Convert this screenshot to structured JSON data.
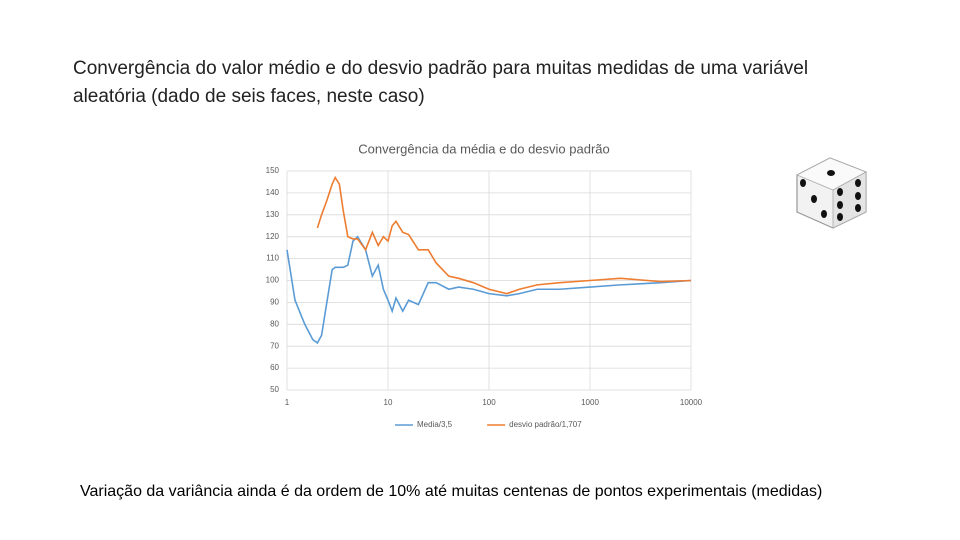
{
  "slide": {
    "title": "Convergência do valor médio e do desvio padrão para muitas medidas de uma variável aleatória (dado de seis faces, neste caso)",
    "caption": "Variação da variância ainda é da ordem de 10% até muitas centenas de pontos experimentais (medidas)"
  },
  "chart_data": {
    "type": "line",
    "title": "Convergência da média e do desvio padrão",
    "x": [
      1,
      1.2,
      1.5,
      1.8,
      2,
      2.2,
      2.5,
      2.8,
      3,
      3.3,
      3.6,
      4,
      4.5,
      5,
      6,
      7,
      8,
      9,
      10,
      11,
      12,
      14,
      16,
      20,
      25,
      30,
      40,
      50,
      70,
      100,
      150,
      200,
      300,
      500,
      1000,
      2000,
      5000,
      10000
    ],
    "series": [
      {
        "name": "Media/3,5",
        "color": "#5b9bd5",
        "values": [
          114,
          91,
          80,
          73,
          71.5,
          75,
          91,
          105,
          106,
          106,
          106,
          107,
          118,
          120,
          114,
          102,
          107,
          96,
          91,
          86,
          92,
          86,
          91,
          89,
          99,
          99,
          96,
          97,
          96,
          94,
          93,
          94,
          96,
          96,
          97,
          98,
          99,
          100
        ]
      },
      {
        "name": "desvio padrão/1,707",
        "color": "#ed7d31",
        "values": [
          null,
          null,
          null,
          null,
          124,
          130,
          137,
          144,
          147,
          144,
          132,
          120,
          119,
          119,
          114,
          122,
          116,
          120,
          118,
          125,
          127,
          122,
          121,
          114,
          114,
          108,
          102,
          101,
          99,
          96,
          94,
          96,
          98,
          99,
          100,
          101,
          99.5,
          100
        ]
      }
    ],
    "xlim": [
      1,
      10000
    ],
    "xticks": [
      1,
      10,
      100,
      1000,
      10000
    ],
    "xscale": "log",
    "ylim": [
      50,
      150
    ],
    "yticks": [
      50,
      60,
      70,
      80,
      90,
      100,
      110,
      120,
      130,
      140,
      150
    ],
    "grid": true,
    "legend": "bottom"
  }
}
